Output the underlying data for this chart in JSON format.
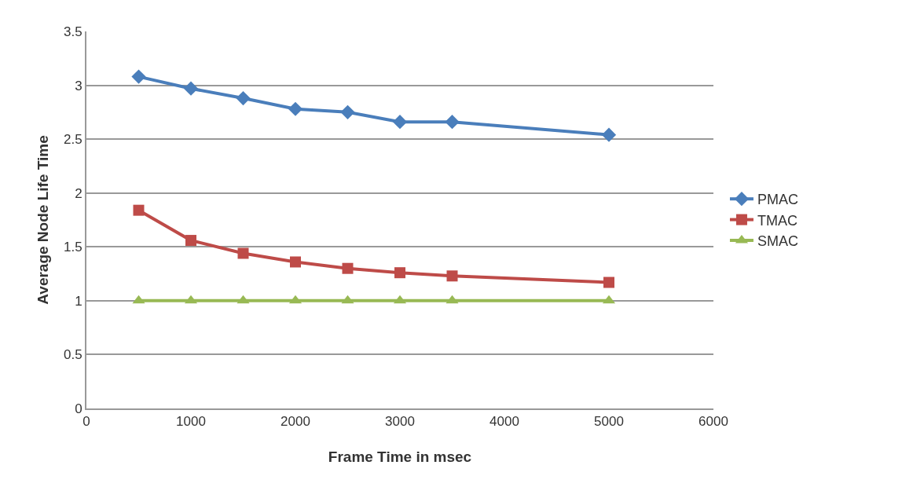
{
  "chart_data": {
    "type": "line",
    "xlabel": "Frame Time in msec",
    "ylabel": "Average Node Life Time",
    "x": [
      500,
      1000,
      1500,
      2000,
      2500,
      3000,
      3500,
      5000
    ],
    "series": [
      {
        "name": "PMAC",
        "color": "#4a7ebb",
        "marker": "diamond",
        "values": [
          3.08,
          2.97,
          2.88,
          2.78,
          2.75,
          2.66,
          2.66,
          2.54
        ]
      },
      {
        "name": "TMAC",
        "color": "#be4b48",
        "marker": "square",
        "values": [
          1.84,
          1.56,
          1.44,
          1.36,
          1.3,
          1.26,
          1.23,
          1.17
        ]
      },
      {
        "name": "SMAC",
        "color": "#98b954",
        "marker": "triangle",
        "values": [
          1,
          1,
          1,
          1,
          1,
          1,
          1,
          1
        ]
      }
    ],
    "xlim": [
      0,
      6000
    ],
    "xticks": [
      0,
      1000,
      2000,
      3000,
      4000,
      5000,
      6000
    ],
    "ylim": [
      0,
      3.5
    ],
    "yticks": [
      0,
      0.5,
      1,
      1.5,
      2,
      2.5,
      3,
      3.5
    ],
    "grid": "y",
    "legend": "right",
    "line_style": "solid"
  }
}
